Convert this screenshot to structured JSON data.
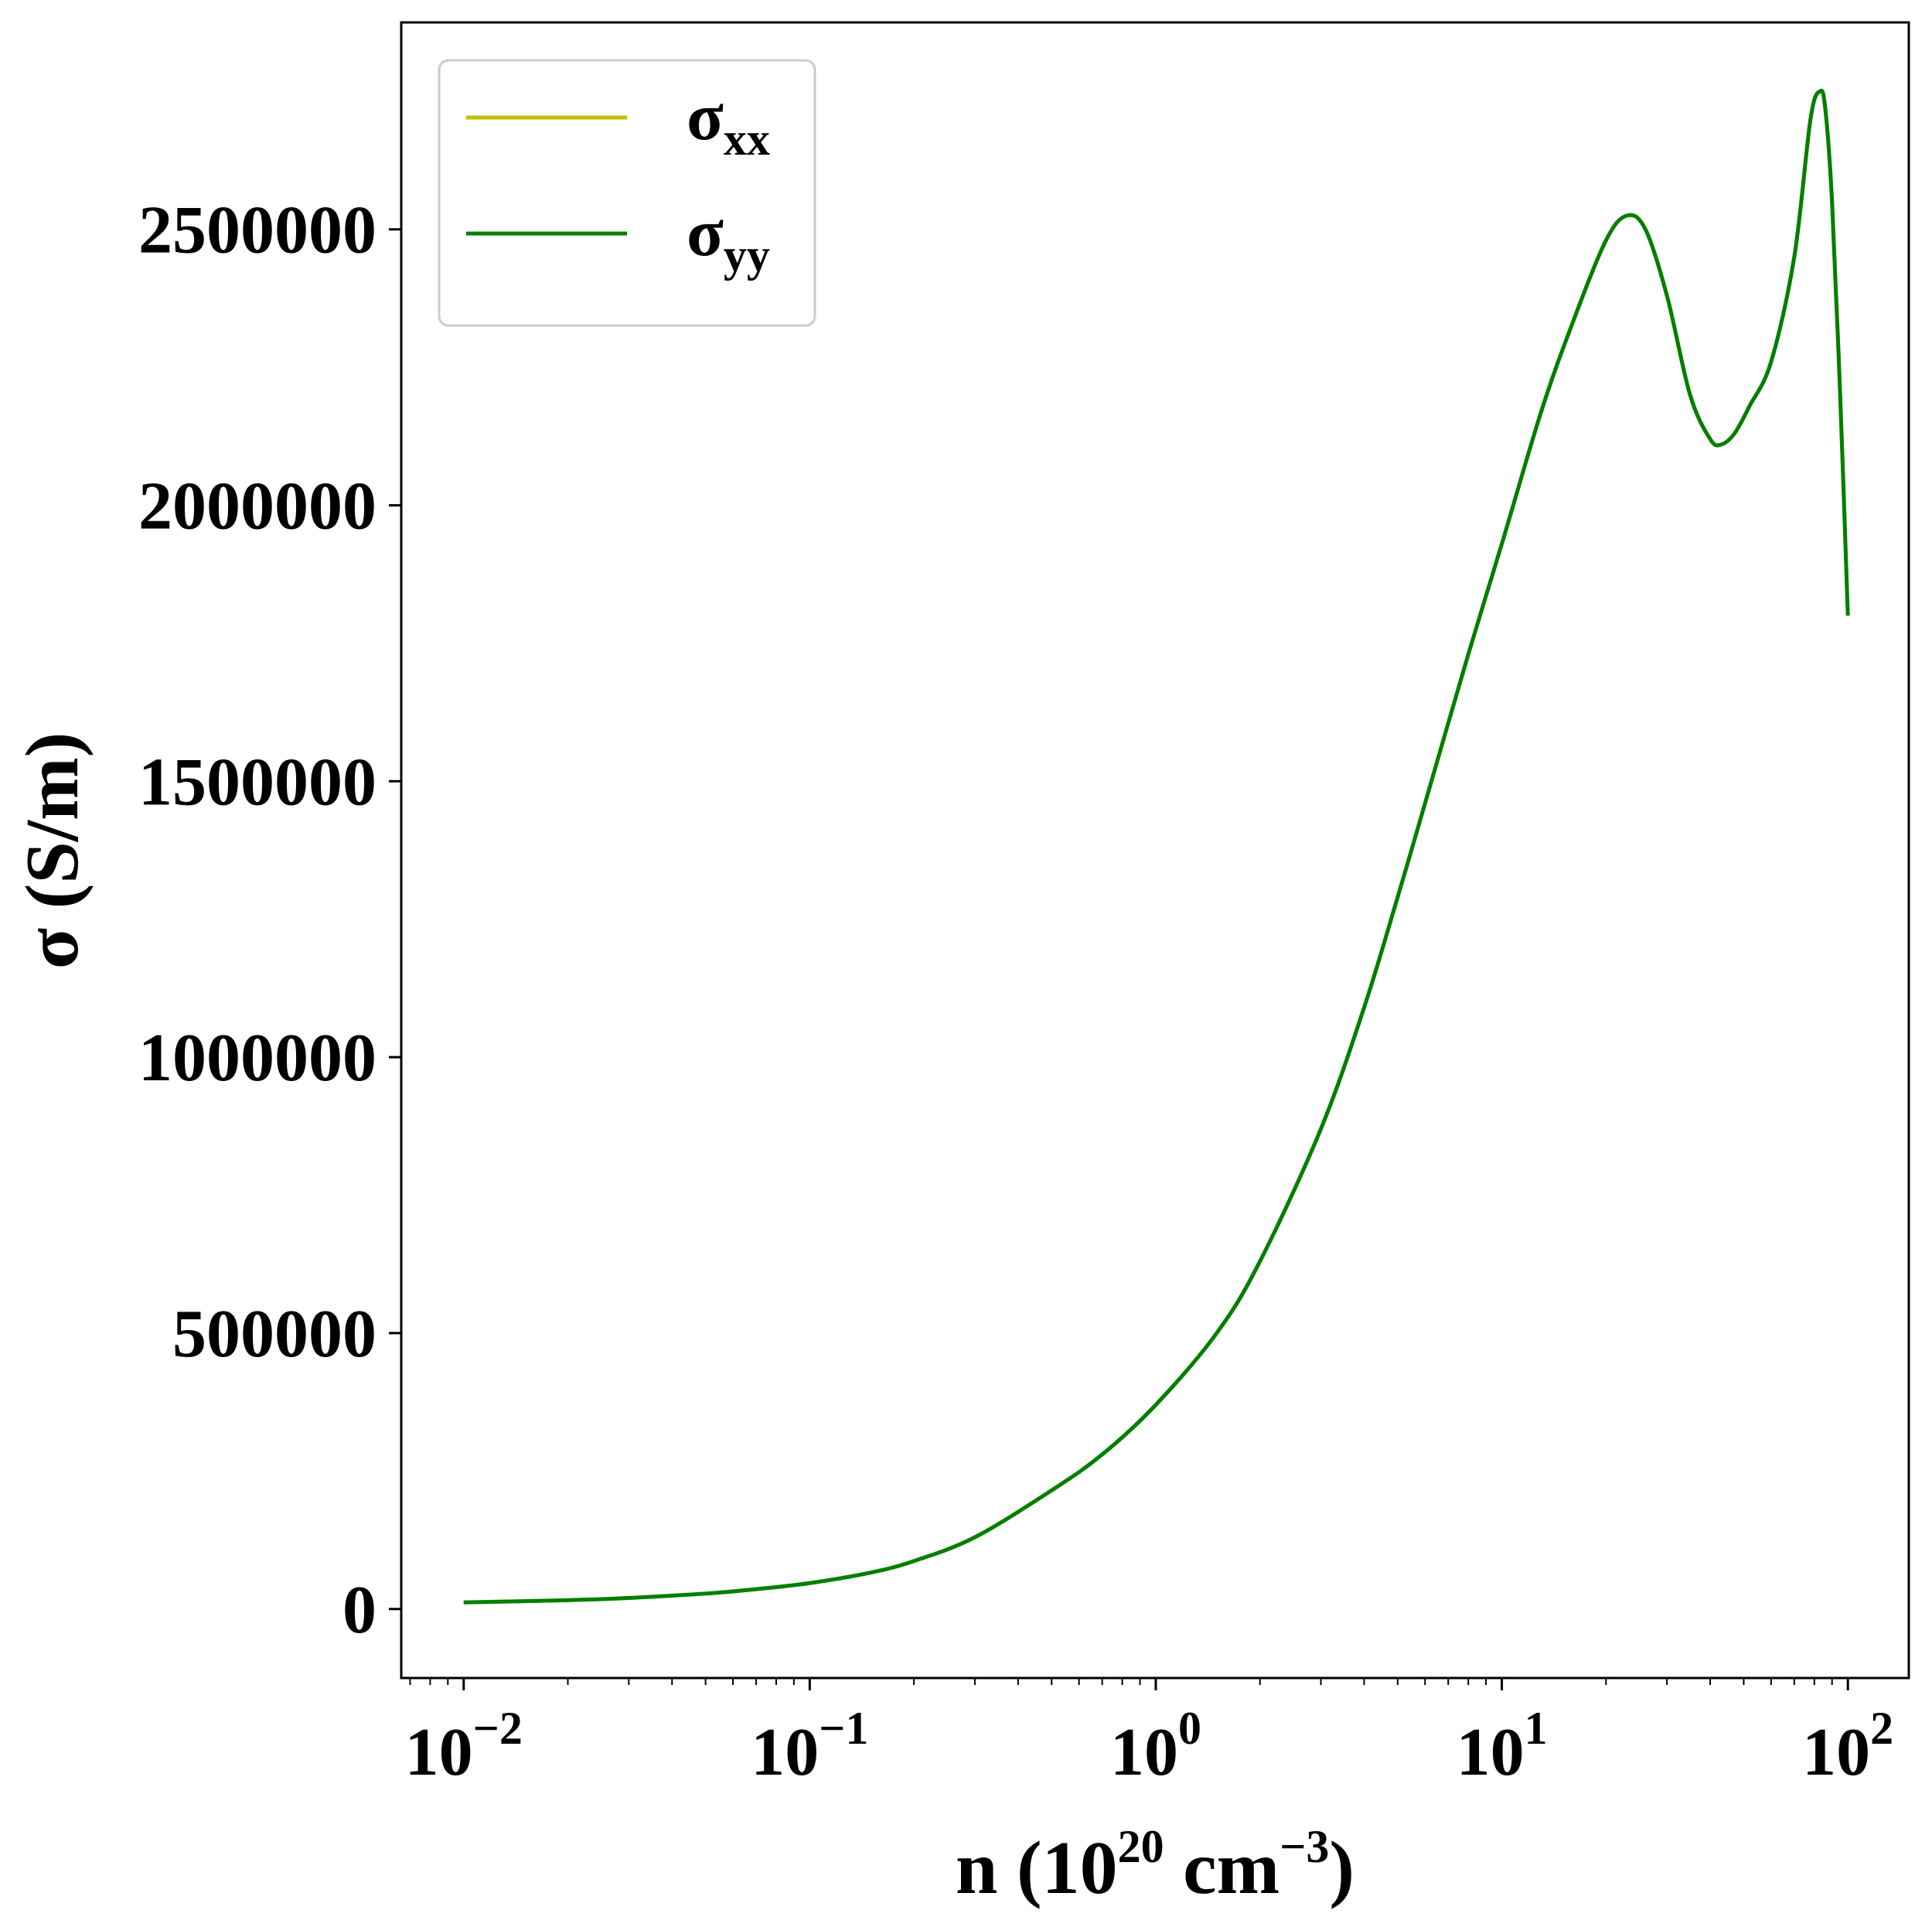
{
  "chart_data": {
    "type": "line",
    "xscale": "log",
    "xlabel": {
      "prefix": "n (10",
      "sup1": "20",
      "middle": " cm",
      "sup2": "−3",
      "suffix": ")"
    },
    "ylabel": "σ (S/m)",
    "xlim": [
      0.0066,
      150
    ],
    "ylim": [
      -125000,
      2875000
    ],
    "x_ticks": [
      {
        "value": 0.01,
        "base": "10",
        "exp": "−2"
      },
      {
        "value": 0.1,
        "base": "10",
        "exp": "−1"
      },
      {
        "value": 1,
        "base": "10",
        "exp": "0"
      },
      {
        "value": 10,
        "base": "10",
        "exp": "1"
      },
      {
        "value": 100,
        "base": "10",
        "exp": "2"
      }
    ],
    "y_ticks": [
      {
        "value": 0,
        "label": "0"
      },
      {
        "value": 500000,
        "label": "500000"
      },
      {
        "value": 1000000,
        "label": "1000000"
      },
      {
        "value": 1500000,
        "label": "1500000"
      },
      {
        "value": 2000000,
        "label": "2000000"
      },
      {
        "value": 2500000,
        "label": "2500000"
      }
    ],
    "grid": false,
    "legend": {
      "placement": "top-left"
    },
    "x": [
      0.01,
      0.02,
      0.03,
      0.05,
      0.07,
      0.1,
      0.15,
      0.2,
      0.3,
      0.5,
      0.7,
      1,
      1.5,
      2,
      3,
      4,
      5,
      6,
      8,
      10,
      13,
      16,
      20,
      23,
      26,
      30,
      35,
      40,
      43,
      47,
      52,
      60,
      70,
      78,
      83,
      86,
      90,
      95,
      100
    ],
    "series": [
      {
        "name": "σ",
        "subscript": "xx",
        "color": "#bfbf00",
        "values": [
          12000,
          16000,
          20000,
          28000,
          36000,
          47000,
          66000,
          87000,
          130000,
          215000,
          280000,
          370000,
          500000,
          630000,
          870000,
          1090000,
          1290000,
          1460000,
          1730000,
          1930000,
          2170000,
          2330000,
          2480000,
          2525000,
          2500000,
          2380000,
          2200000,
          2120000,
          2110000,
          2130000,
          2180000,
          2260000,
          2450000,
          2700000,
          2750000,
          2720000,
          2550000,
          2200000,
          1800000
        ]
      },
      {
        "name": "σ",
        "subscript": "yy",
        "color": "#007f00",
        "values": [
          12000,
          16000,
          20000,
          28000,
          36000,
          47000,
          66000,
          87000,
          130000,
          215000,
          280000,
          370000,
          500000,
          630000,
          870000,
          1090000,
          1290000,
          1460000,
          1730000,
          1930000,
          2170000,
          2330000,
          2480000,
          2525000,
          2500000,
          2380000,
          2200000,
          2120000,
          2110000,
          2130000,
          2180000,
          2260000,
          2450000,
          2700000,
          2750000,
          2720000,
          2550000,
          2200000,
          1800000
        ]
      }
    ]
  }
}
